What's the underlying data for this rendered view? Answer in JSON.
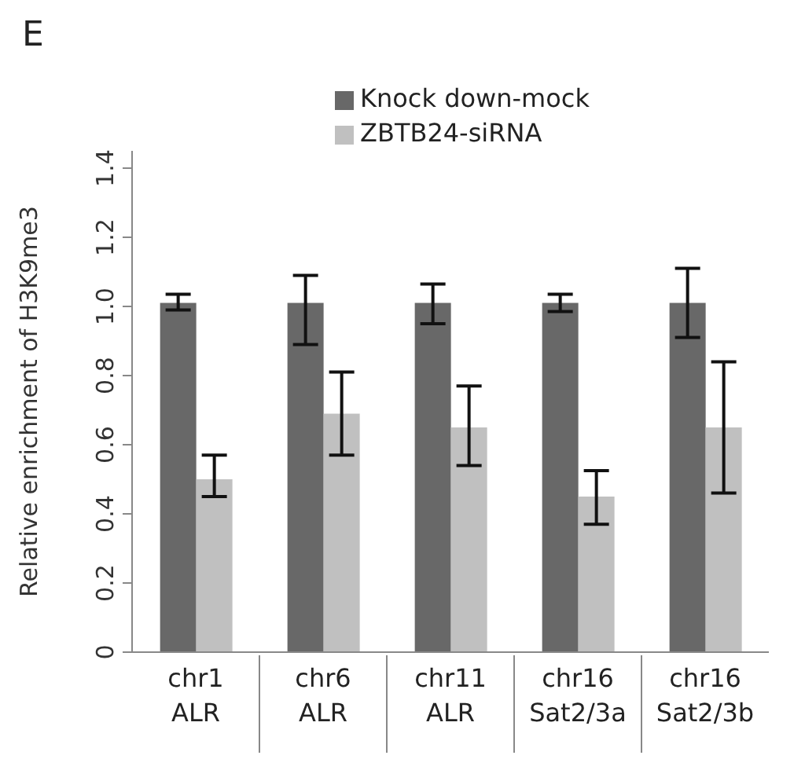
{
  "chart_data": {
    "type": "bar",
    "title": "E",
    "ylabel": "Relative enrichment of H3K9me3",
    "categories": [
      "chr1\nALR",
      "chr6\nALR",
      "chr11\nALR",
      "chr16\nSat2/3a",
      "chr16\nSat2/3b"
    ],
    "series": [
      {
        "name": "Knock down-mock",
        "color": "#686868",
        "values": [
          1.01,
          1.01,
          1.01,
          1.01,
          1.01
        ],
        "errors": [
          [
            0.99,
            1.035
          ],
          [
            0.89,
            1.09
          ],
          [
            0.95,
            1.065
          ],
          [
            0.985,
            1.035
          ],
          [
            0.91,
            1.11
          ]
        ]
      },
      {
        "name": "ZBTB24-siRNA",
        "color": "#c0c0c0",
        "values": [
          0.5,
          0.69,
          0.65,
          0.45,
          0.65
        ],
        "errors": [
          [
            0.45,
            0.57
          ],
          [
            0.57,
            0.81
          ],
          [
            0.54,
            0.77
          ],
          [
            0.37,
            0.525
          ],
          [
            0.46,
            0.84
          ]
        ]
      }
    ],
    "ylim": [
      0,
      1.45
    ],
    "yticks": [
      0,
      0.2,
      0.4,
      0.6,
      0.8,
      {
        "value": 1,
        "label": "1.0"
      },
      1.2,
      1.4
    ],
    "grid": false,
    "legend": "top"
  }
}
